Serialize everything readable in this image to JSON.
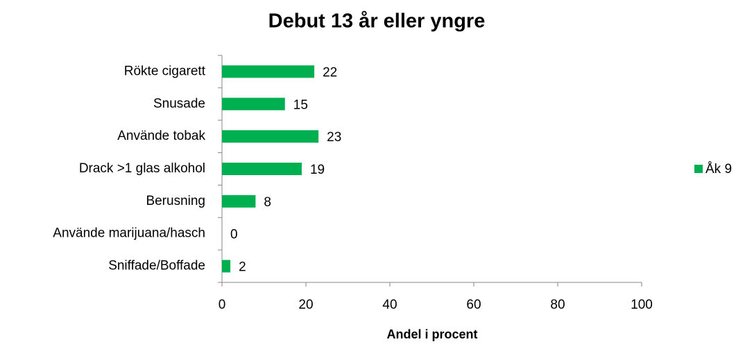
{
  "chart_data": {
    "type": "bar",
    "orientation": "horizontal",
    "title": "Debut 13 år eller yngre",
    "x_label": "Andel i procent",
    "categories": [
      "Rökte cigarett",
      "Snusade",
      "Använde tobak",
      "Drack >1 glas alkohol",
      "Berusning",
      "Använde marijuana/hasch",
      "Sniffade/Boffade"
    ],
    "series": [
      {
        "name": "Åk 9",
        "color": "#00b050",
        "values": [
          22,
          15,
          23,
          19,
          8,
          0,
          2
        ]
      }
    ],
    "xlim": [
      0,
      100
    ],
    "xticks": [
      0,
      20,
      40,
      60,
      80,
      100
    ],
    "grid": false,
    "legend": "right"
  }
}
